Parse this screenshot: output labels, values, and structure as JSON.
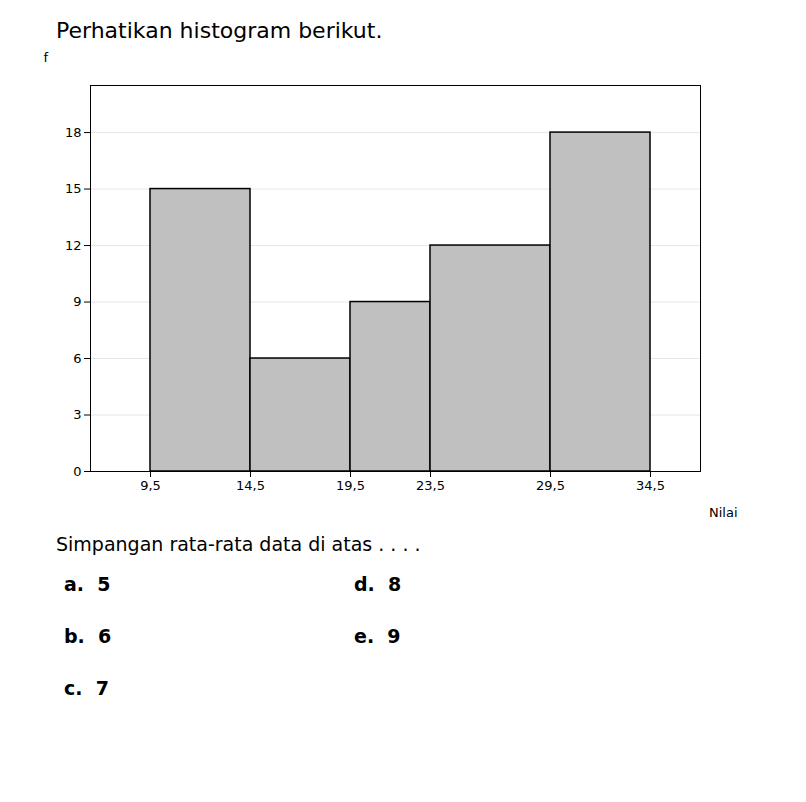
{
  "chart_data": {
    "type": "histogram",
    "title": "Perhatikan histogram berikut.",
    "subtitle": "Simpangan rata-rata data di atas . . . .",
    "xlabel": "Nilai",
    "ylabel": "f",
    "bins": [
      9.5,
      14.5,
      19.5,
      23.5,
      29.5,
      34.5
    ],
    "values": [
      15,
      6,
      9,
      12,
      18
    ],
    "color": "#c0c0c0",
    "xlim": [
      6.5,
      37.0
    ],
    "xticks": [
      {
        "value": 9.5,
        "label": "9,5"
      },
      {
        "value": 14.5,
        "label": "14,5"
      },
      {
        "value": 19.5,
        "label": "19,5"
      },
      {
        "value": 23.5,
        "label": "23,5"
      },
      {
        "value": 29.5,
        "label": "29,5"
      },
      {
        "value": 34.5,
        "label": "34,5"
      }
    ],
    "ylim": [
      0,
      20.5
    ],
    "yticks": [
      0,
      3,
      6,
      9,
      12,
      15,
      18
    ],
    "grid": true,
    "annotations": [
      "a.  5",
      "b.  6",
      "c.  7",
      "d.  8",
      "e.  9"
    ]
  }
}
